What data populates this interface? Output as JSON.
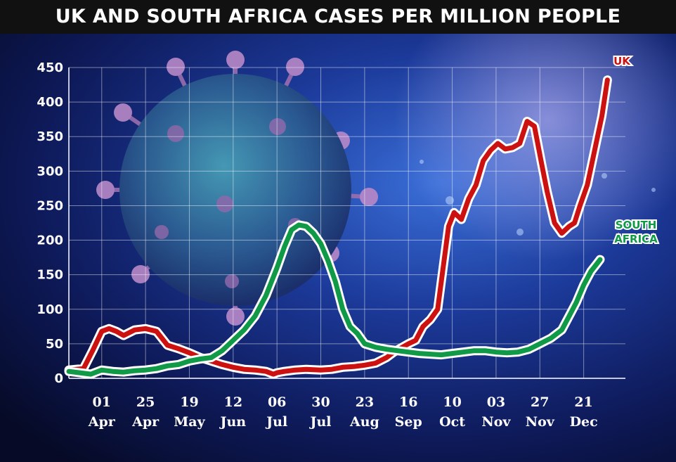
{
  "chart_data": {
    "type": "line",
    "title": "UK AND SOUTH AFRICA CASES PER MILLION PEOPLE",
    "xlabel": "",
    "ylabel": "",
    "ylim": [
      0,
      450
    ],
    "yticks": [
      "0",
      "50",
      "100",
      "150",
      "200",
      "250",
      "300",
      "350",
      "400",
      "450"
    ],
    "x_start_day": -18,
    "x_end_day": 283,
    "xticks": [
      {
        "day": 0,
        "top": "01",
        "bottom": "Apr"
      },
      {
        "day": 24,
        "top": "25",
        "bottom": "Apr"
      },
      {
        "day": 48,
        "top": "19",
        "bottom": "May"
      },
      {
        "day": 72,
        "top": "12",
        "bottom": "Jun"
      },
      {
        "day": 96,
        "top": "06",
        "bottom": "Jul"
      },
      {
        "day": 120,
        "top": "30",
        "bottom": "Jul"
      },
      {
        "day": 144,
        "top": "23",
        "bottom": "Aug"
      },
      {
        "day": 168,
        "top": "16",
        "bottom": "Sep"
      },
      {
        "day": 192,
        "top": "10",
        "bottom": "Oct"
      },
      {
        "day": 216,
        "top": "03",
        "bottom": "Nov"
      },
      {
        "day": 240,
        "top": "27",
        "bottom": "Nov"
      },
      {
        "day": 264,
        "top": "21",
        "bottom": "Dec"
      }
    ],
    "series": [
      {
        "name": "UK",
        "color": "#cc1111",
        "points": [
          [
            -18,
            12
          ],
          [
            -10,
            14
          ],
          [
            -5,
            40
          ],
          [
            0,
            68
          ],
          [
            4,
            72
          ],
          [
            8,
            68
          ],
          [
            12,
            62
          ],
          [
            18,
            70
          ],
          [
            24,
            72
          ],
          [
            30,
            68
          ],
          [
            36,
            48
          ],
          [
            42,
            43
          ],
          [
            48,
            37
          ],
          [
            54,
            30
          ],
          [
            60,
            25
          ],
          [
            66,
            20
          ],
          [
            72,
            16
          ],
          [
            78,
            13
          ],
          [
            84,
            12
          ],
          [
            90,
            10
          ],
          [
            94,
            6
          ],
          [
            96,
            8
          ],
          [
            100,
            10
          ],
          [
            106,
            12
          ],
          [
            112,
            13
          ],
          [
            120,
            12
          ],
          [
            126,
            13
          ],
          [
            132,
            16
          ],
          [
            138,
            17
          ],
          [
            144,
            19
          ],
          [
            150,
            22
          ],
          [
            156,
            30
          ],
          [
            160,
            38
          ],
          [
            164,
            44
          ],
          [
            168,
            50
          ],
          [
            172,
            55
          ],
          [
            176,
            75
          ],
          [
            180,
            85
          ],
          [
            184,
            100
          ],
          [
            187,
            160
          ],
          [
            190,
            220
          ],
          [
            193,
            240
          ],
          [
            197,
            230
          ],
          [
            201,
            260
          ],
          [
            205,
            280
          ],
          [
            209,
            315
          ],
          [
            213,
            330
          ],
          [
            217,
            340
          ],
          [
            221,
            332
          ],
          [
            225,
            334
          ],
          [
            229,
            340
          ],
          [
            233,
            372
          ],
          [
            237,
            365
          ],
          [
            241,
            310
          ],
          [
            244,
            270
          ],
          [
            248,
            225
          ],
          [
            252,
            210
          ],
          [
            256,
            220
          ],
          [
            259,
            225
          ],
          [
            262,
            250
          ],
          [
            266,
            280
          ],
          [
            270,
            330
          ],
          [
            274,
            380
          ],
          [
            277,
            432
          ]
        ]
      },
      {
        "name": "SOUTH AFRICA",
        "color": "#109a48",
        "points": [
          [
            -18,
            10
          ],
          [
            -12,
            8
          ],
          [
            -6,
            6
          ],
          [
            0,
            12
          ],
          [
            6,
            10
          ],
          [
            12,
            9
          ],
          [
            18,
            11
          ],
          [
            24,
            12
          ],
          [
            30,
            14
          ],
          [
            36,
            18
          ],
          [
            42,
            20
          ],
          [
            48,
            25
          ],
          [
            54,
            28
          ],
          [
            60,
            30
          ],
          [
            66,
            40
          ],
          [
            72,
            55
          ],
          [
            78,
            70
          ],
          [
            84,
            90
          ],
          [
            90,
            120
          ],
          [
            96,
            160
          ],
          [
            100,
            190
          ],
          [
            104,
            215
          ],
          [
            108,
            222
          ],
          [
            112,
            220
          ],
          [
            116,
            210
          ],
          [
            120,
            195
          ],
          [
            124,
            170
          ],
          [
            128,
            140
          ],
          [
            132,
            100
          ],
          [
            136,
            75
          ],
          [
            140,
            65
          ],
          [
            144,
            50
          ],
          [
            150,
            45
          ],
          [
            156,
            42
          ],
          [
            162,
            40
          ],
          [
            168,
            38
          ],
          [
            174,
            36
          ],
          [
            180,
            35
          ],
          [
            186,
            34
          ],
          [
            192,
            36
          ],
          [
            198,
            38
          ],
          [
            204,
            40
          ],
          [
            210,
            40
          ],
          [
            216,
            38
          ],
          [
            222,
            37
          ],
          [
            228,
            38
          ],
          [
            234,
            42
          ],
          [
            240,
            50
          ],
          [
            246,
            58
          ],
          [
            252,
            70
          ],
          [
            256,
            90
          ],
          [
            260,
            110
          ],
          [
            264,
            135
          ],
          [
            268,
            155
          ],
          [
            271,
            165
          ],
          [
            273,
            172
          ]
        ]
      }
    ],
    "legend": [
      {
        "lines": [
          "UK"
        ],
        "color": "#cc1111"
      },
      {
        "lines": [
          "SOUTH",
          "AFRICA"
        ],
        "color": "#109a48"
      }
    ]
  }
}
